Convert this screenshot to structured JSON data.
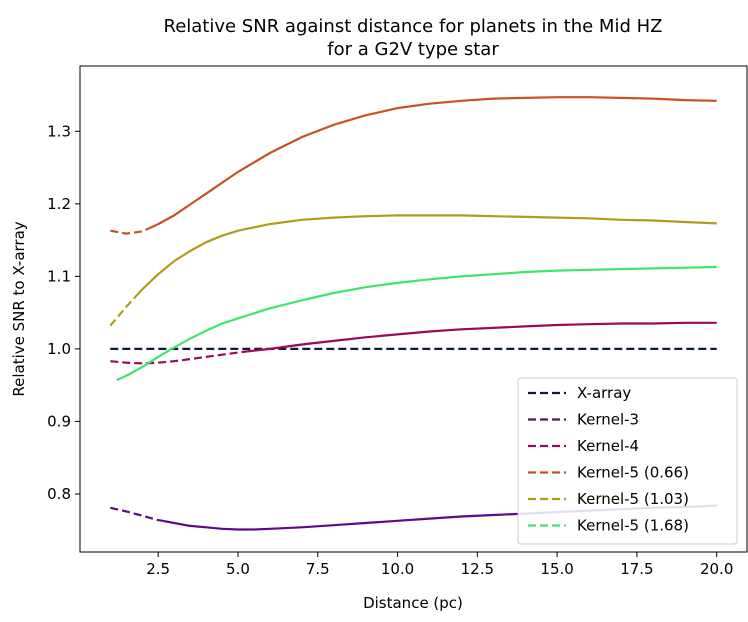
{
  "chart_data": {
    "type": "line",
    "title_line1": "Relative SNR against distance for planets in the Mid HZ",
    "title_line2": "for a G2V type star",
    "xlabel": "Distance (pc)",
    "ylabel": "Relative SNR to X-array",
    "xlim": [
      0.05,
      20.95
    ],
    "ylim": [
      0.72,
      1.39
    ],
    "xticks": [
      2.5,
      5.0,
      7.5,
      10.0,
      12.5,
      15.0,
      17.5,
      20.0
    ],
    "xtick_labels": [
      "2.5",
      "5.0",
      "7.5",
      "10.0",
      "12.5",
      "15.0",
      "17.5",
      "20.0"
    ],
    "yticks": [
      0.8,
      0.9,
      1.0,
      1.1,
      1.2,
      1.3
    ],
    "ytick_labels": [
      "0.8",
      "0.9",
      "1.0",
      "1.1",
      "1.2",
      "1.3"
    ],
    "grid": false,
    "legend_position": "lower-right",
    "series": [
      {
        "name": "X-array",
        "color": "#0d1b3e",
        "dash_until": 20.0,
        "x": [
          1,
          20
        ],
        "y": [
          1.0,
          1.0
        ]
      },
      {
        "name": "Kernel-3",
        "color": "#5c0a8a",
        "dash_until": 2.7,
        "x": [
          1,
          1.5,
          2,
          2.5,
          3,
          3.5,
          4,
          4.5,
          5,
          5.5,
          6,
          7,
          8,
          9,
          10,
          11,
          12,
          13,
          14,
          15,
          16,
          17,
          18,
          19,
          20
        ],
        "y": [
          0.781,
          0.776,
          0.77,
          0.764,
          0.76,
          0.756,
          0.754,
          0.752,
          0.751,
          0.751,
          0.752,
          0.754,
          0.757,
          0.76,
          0.763,
          0.766,
          0.769,
          0.771,
          0.773,
          0.775,
          0.777,
          0.779,
          0.781,
          0.782,
          0.784
        ]
      },
      {
        "name": "Kernel-4",
        "color": "#9a0a5a",
        "dash_until": 5.3,
        "x": [
          1,
          1.5,
          2,
          2.5,
          3,
          3.5,
          4,
          5,
          6,
          7,
          8,
          9,
          10,
          11,
          12,
          13,
          14,
          15,
          16,
          17,
          18,
          19,
          20
        ],
        "y": [
          0.983,
          0.981,
          0.98,
          0.981,
          0.983,
          0.986,
          0.989,
          0.995,
          1.0,
          1.006,
          1.011,
          1.016,
          1.02,
          1.024,
          1.027,
          1.029,
          1.031,
          1.033,
          1.034,
          1.035,
          1.035,
          1.036,
          1.036
        ]
      },
      {
        "name": "Kernel-5 (0.66)",
        "color": "#c65321",
        "dash_until": 2.2,
        "x": [
          1,
          1.5,
          2,
          2.5,
          3,
          3.5,
          4,
          4.5,
          5,
          6,
          7,
          8,
          9,
          10,
          11,
          12,
          13,
          14,
          15,
          16,
          17,
          18,
          19,
          20
        ],
        "y": [
          1.163,
          1.159,
          1.162,
          1.172,
          1.184,
          1.199,
          1.214,
          1.229,
          1.244,
          1.27,
          1.292,
          1.309,
          1.322,
          1.332,
          1.338,
          1.342,
          1.345,
          1.346,
          1.347,
          1.347,
          1.346,
          1.345,
          1.343,
          1.342
        ]
      },
      {
        "name": "Kernel-5 (1.03)",
        "color": "#b39b1a",
        "dash_until": 1.8,
        "x": [
          1,
          1.5,
          2,
          2.5,
          3,
          3.5,
          4,
          4.5,
          5,
          6,
          7,
          8,
          9,
          10,
          11,
          12,
          13,
          14,
          15,
          16,
          17,
          18,
          19,
          20
        ],
        "y": [
          1.032,
          1.058,
          1.082,
          1.103,
          1.121,
          1.135,
          1.147,
          1.156,
          1.163,
          1.172,
          1.178,
          1.181,
          1.183,
          1.184,
          1.184,
          1.184,
          1.183,
          1.182,
          1.181,
          1.18,
          1.178,
          1.177,
          1.175,
          1.173
        ]
      },
      {
        "name": "Kernel-5 (1.68)",
        "color": "#3fe36e",
        "dash_until": 0,
        "x": [
          1.2,
          1.5,
          2,
          2.5,
          3,
          3.5,
          4,
          4.5,
          5,
          6,
          7,
          8,
          9,
          10,
          11,
          12,
          13,
          14,
          15,
          16,
          17,
          18,
          19,
          20
        ],
        "y": [
          0.957,
          0.963,
          0.975,
          0.989,
          1.002,
          1.014,
          1.025,
          1.035,
          1.042,
          1.056,
          1.067,
          1.077,
          1.085,
          1.091,
          1.096,
          1.1,
          1.103,
          1.106,
          1.108,
          1.109,
          1.11,
          1.111,
          1.112,
          1.113
        ]
      }
    ]
  }
}
